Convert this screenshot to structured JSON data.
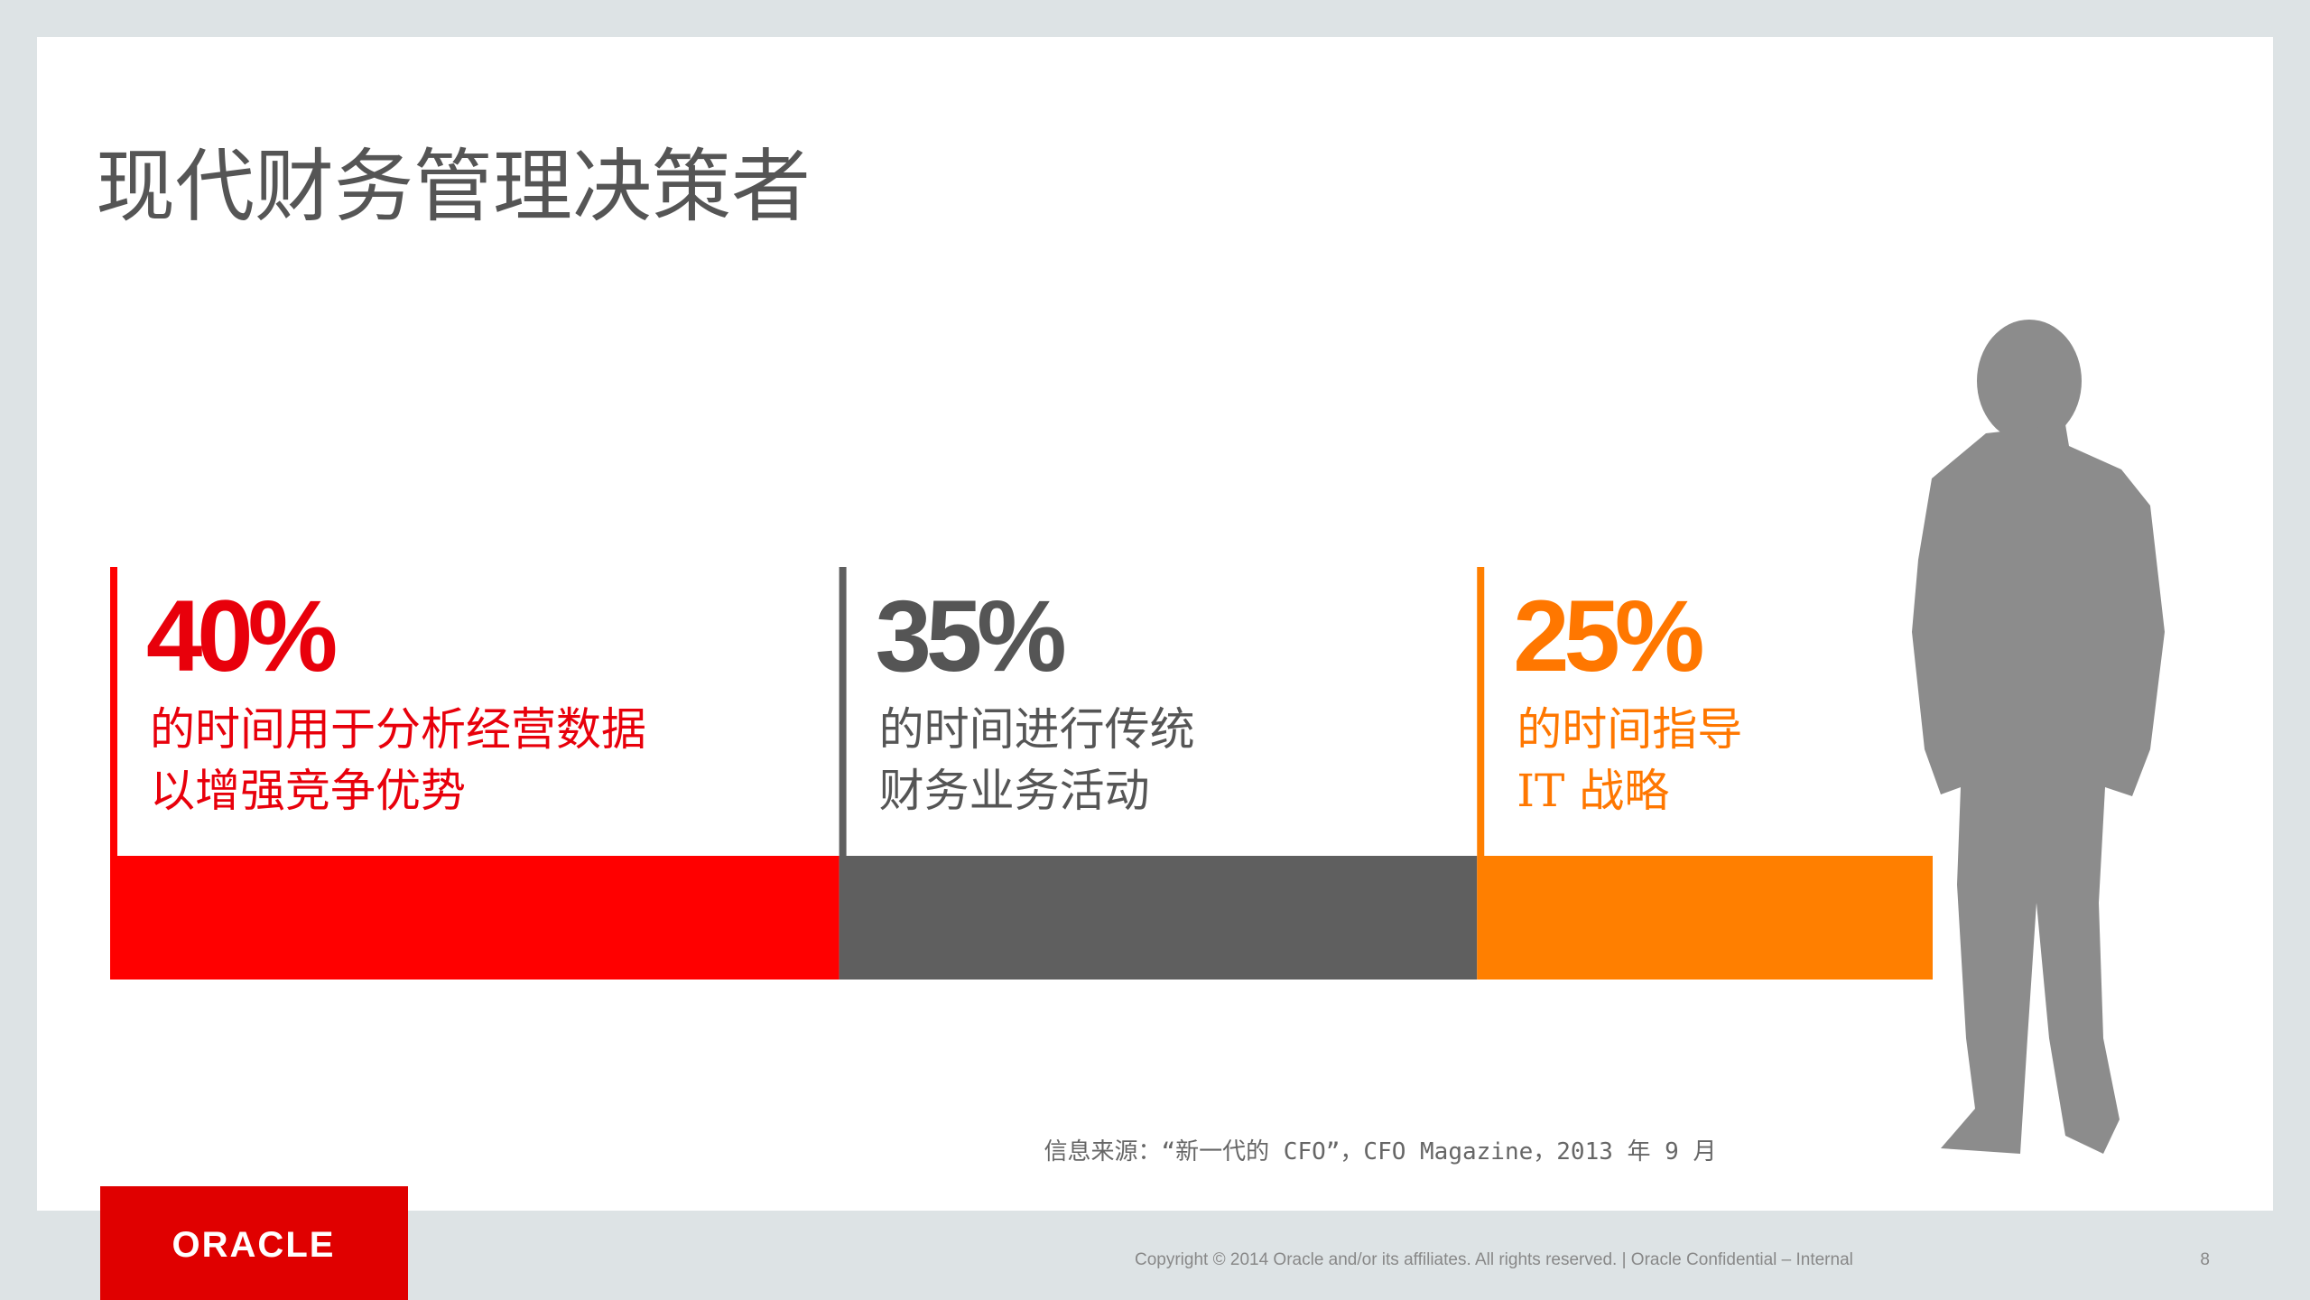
{
  "chart_data": {
    "type": "stacked-bar",
    "title": "现代财务管理决策者",
    "series": [
      {
        "values": [
          40
        ],
        "value_labels": [
          "40%"
        ],
        "description": [
          "的时间用于分析经营数据",
          "以增强竞争优势"
        ],
        "color": "#ff0000",
        "text_color": "#e8000b"
      },
      {
        "values": [
          35
        ],
        "value_labels": [
          "35%"
        ],
        "description": [
          "的时间进行传统",
          "财务业务活动"
        ],
        "color": "#5f5f5f",
        "text_color": "#555555"
      },
      {
        "values": [
          25
        ],
        "value_labels": [
          "25%"
        ],
        "description": [
          "的时间指导",
          "IT 战略"
        ],
        "color": "#ff7f00",
        "text_color": "#ff7700"
      }
    ]
  },
  "slide": {
    "source": "信息来源：“新一代的 CFO”，CFO Magazine，2013 年 9 月",
    "logo": "ORACLE",
    "copyright": "Copyright © 2014 Oracle and/or its affiliates. All rights reserved. | Oracle Confidential – Internal",
    "page_number": "8"
  }
}
